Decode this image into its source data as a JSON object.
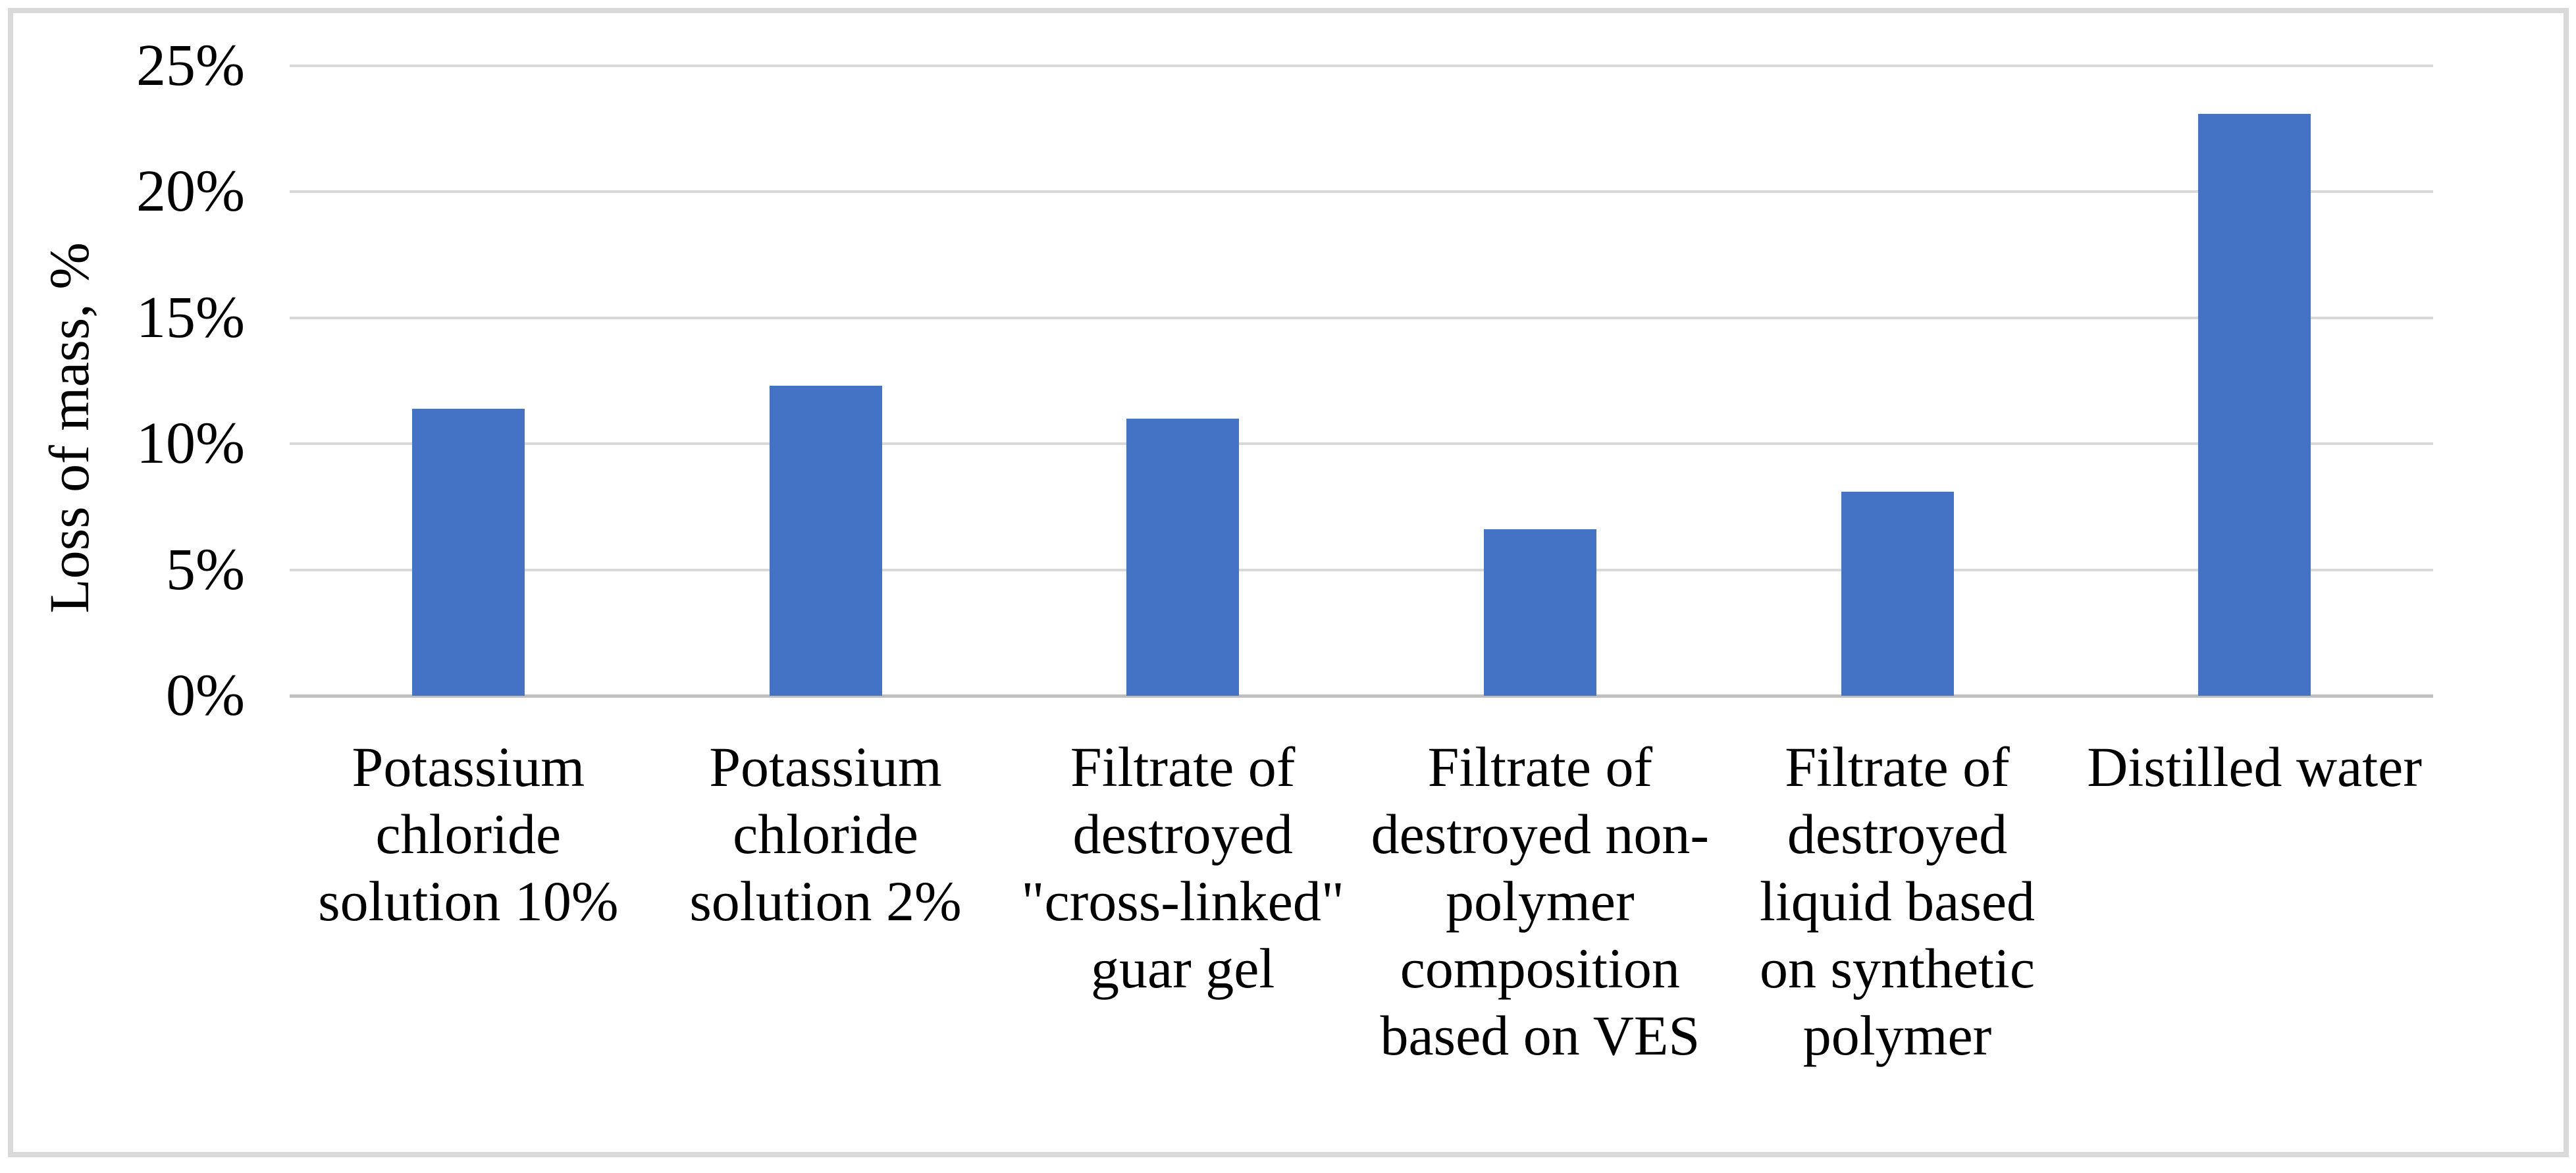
{
  "chart_data": {
    "type": "bar",
    "title": "",
    "xlabel": "",
    "ylabel": "Loss of mass, %",
    "categories": [
      "Potassium chloride solution 10%",
      "Potassium chloride solution 2%",
      "Filtrate of destroyed \"cross-linked\" guar gel",
      "Filtrate of destroyed non-polymer composition based on VES",
      "Filtrate of destroyed liquid based on synthetic polymer",
      "Distilled water"
    ],
    "values": [
      11.4,
      12.3,
      11.0,
      6.6,
      8.1,
      23.1
    ],
    "ylim": [
      0,
      25
    ],
    "yticks": [
      0,
      5,
      10,
      15,
      20,
      25
    ],
    "ytick_labels": [
      "0%",
      "5%",
      "10%",
      "15%",
      "20%",
      "25%"
    ],
    "grid": "horizontal",
    "legend": "none",
    "series_name": "Loss of mass"
  },
  "colors": {
    "bar_fill": "#4472C4",
    "gridline": "#D9D9D9",
    "axis_line": "#BFBFBF",
    "border": "#D9D9D9",
    "text": "#000000",
    "background": "#FFFFFF"
  }
}
